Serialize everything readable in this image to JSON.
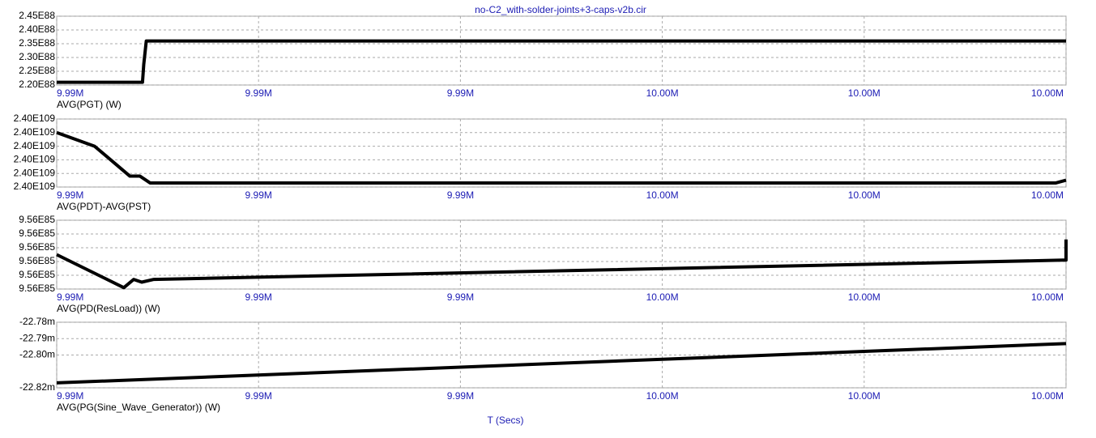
{
  "title": "no-C2_with-solder-joints+3-caps-v2b.cir",
  "xlabel": "T (Secs)",
  "chart_data": [
    {
      "type": "line",
      "x": [
        9993000,
        9993340,
        9993345,
        9993355,
        9997000
      ],
      "series": [
        {
          "name": "AVG(PGT) (W)",
          "color": "#000000",
          "values": [
            2.21e+88,
            2.21e+88,
            2.275e+88,
            2.36e+88,
            2.36e+88
          ]
        }
      ],
      "xlim": [
        9993000,
        9997000
      ],
      "xticks": [
        {
          "value": 9993000,
          "label": "9.99M"
        },
        {
          "value": 9993800,
          "label": "9.99M"
        },
        {
          "value": 9994600,
          "label": "9.99M"
        },
        {
          "value": 9995400,
          "label": "10.00M"
        },
        {
          "value": 9996200,
          "label": "10.00M"
        },
        {
          "value": 9997000,
          "label": "10.00M"
        }
      ],
      "ylim": [
        2.2e+88,
        2.45e+88
      ],
      "yticks": [
        {
          "value": 2.2e+88,
          "label": "2.20E88"
        },
        {
          "value": 2.25e+88,
          "label": "2.25E88"
        },
        {
          "value": 2.3e+88,
          "label": "2.30E88"
        },
        {
          "value": 2.35e+88,
          "label": "2.35E88"
        },
        {
          "value": 2.4e+88,
          "label": "2.40E88"
        },
        {
          "value": 2.45e+88,
          "label": "2.45E88"
        }
      ],
      "grid": true
    },
    {
      "type": "line",
      "x": [
        9993000,
        9993150,
        9993290,
        9993330,
        9993370,
        9996960,
        9997000
      ],
      "series": [
        {
          "name": "AVG(PDT)-AVG(PST)",
          "color": "#000000",
          "values": [
            2.40004e+109,
            2.40003e+109,
            2.400008e+109,
            2.400008e+109,
            2.400003e+109,
            2.400003e+109,
            2.400005e+109
          ]
        }
      ],
      "xlim": [
        9993000,
        9997000
      ],
      "xticks": [
        {
          "value": 9993000,
          "label": "9.99M"
        },
        {
          "value": 9993800,
          "label": "9.99M"
        },
        {
          "value": 9994600,
          "label": "9.99M"
        },
        {
          "value": 9995400,
          "label": "10.00M"
        },
        {
          "value": 9996200,
          "label": "10.00M"
        },
        {
          "value": 9997000,
          "label": "10.00M"
        }
      ],
      "ylim": [
        2.4e+109,
        2.40005e+109
      ],
      "yticks": [
        {
          "value": 2.4e+109,
          "label": "2.40E109"
        },
        {
          "value": 2.40001e+109,
          "label": "2.40E109"
        },
        {
          "value": 2.40002e+109,
          "label": "2.40E109"
        },
        {
          "value": 2.40003e+109,
          "label": "2.40E109"
        },
        {
          "value": 2.40004e+109,
          "label": "2.40E109"
        },
        {
          "value": 2.40005e+109,
          "label": "2.40E109"
        }
      ],
      "grid": true
    },
    {
      "type": "line",
      "x": [
        9993000,
        9993266,
        9993305,
        9993337,
        9993385,
        9996990,
        9997000,
        9997000
      ],
      "series": [
        {
          "name": "AVG(PD(ResLoad)) (W)",
          "color": "#000000",
          "values": [
            9.560025e+85,
            9.560001e+85,
            9.560007e+85,
            9.560005e+85,
            9.560007e+85,
            9.560021e+85,
            9.560021e+85,
            9.560036e+85
          ]
        }
      ],
      "xlim": [
        9993000,
        9997000
      ],
      "xticks": [
        {
          "value": 9993000,
          "label": "9.99M"
        },
        {
          "value": 9993800,
          "label": "9.99M"
        },
        {
          "value": 9994600,
          "label": "9.99M"
        },
        {
          "value": 9995400,
          "label": "10.00M"
        },
        {
          "value": 9996200,
          "label": "10.00M"
        },
        {
          "value": 9997000,
          "label": "10.00M"
        }
      ],
      "ylim": [
        9.56e+85,
        9.56005e+85
      ],
      "yticks": [
        {
          "value": 9.56e+85,
          "label": "9.56E85"
        },
        {
          "value": 9.56001e+85,
          "label": "9.56E85"
        },
        {
          "value": 9.56002e+85,
          "label": "9.56E85"
        },
        {
          "value": 9.56003e+85,
          "label": "9.56E85"
        },
        {
          "value": 9.56004e+85,
          "label": "9.56E85"
        },
        {
          "value": 9.56005e+85,
          "label": "9.56E85"
        }
      ],
      "grid": true
    },
    {
      "type": "line",
      "x": [
        9993000,
        9997000
      ],
      "series": [
        {
          "name": "AVG(PG(Sine_Wave_Generator)) (W)",
          "color": "#000000",
          "values": [
            -0.022817,
            -0.022793
          ]
        }
      ],
      "xlim": [
        9993000,
        9997000
      ],
      "xticks": [
        {
          "value": 9993000,
          "label": "9.99M"
        },
        {
          "value": 9993800,
          "label": "9.99M"
        },
        {
          "value": 9994600,
          "label": "9.99M"
        },
        {
          "value": 9995400,
          "label": "10.00M"
        },
        {
          "value": 9996200,
          "label": "10.00M"
        },
        {
          "value": 9997000,
          "label": "10.00M"
        }
      ],
      "ylim": [
        -0.02282,
        -0.02278
      ],
      "yticks": [
        {
          "value": -0.02282,
          "label": "-22.82m"
        },
        {
          "value": -0.0228,
          "label": "-22.80m"
        },
        {
          "value": -0.02279,
          "label": "-22.79m"
        },
        {
          "value": -0.02278,
          "label": "-22.78m"
        }
      ],
      "grid": true
    }
  ]
}
